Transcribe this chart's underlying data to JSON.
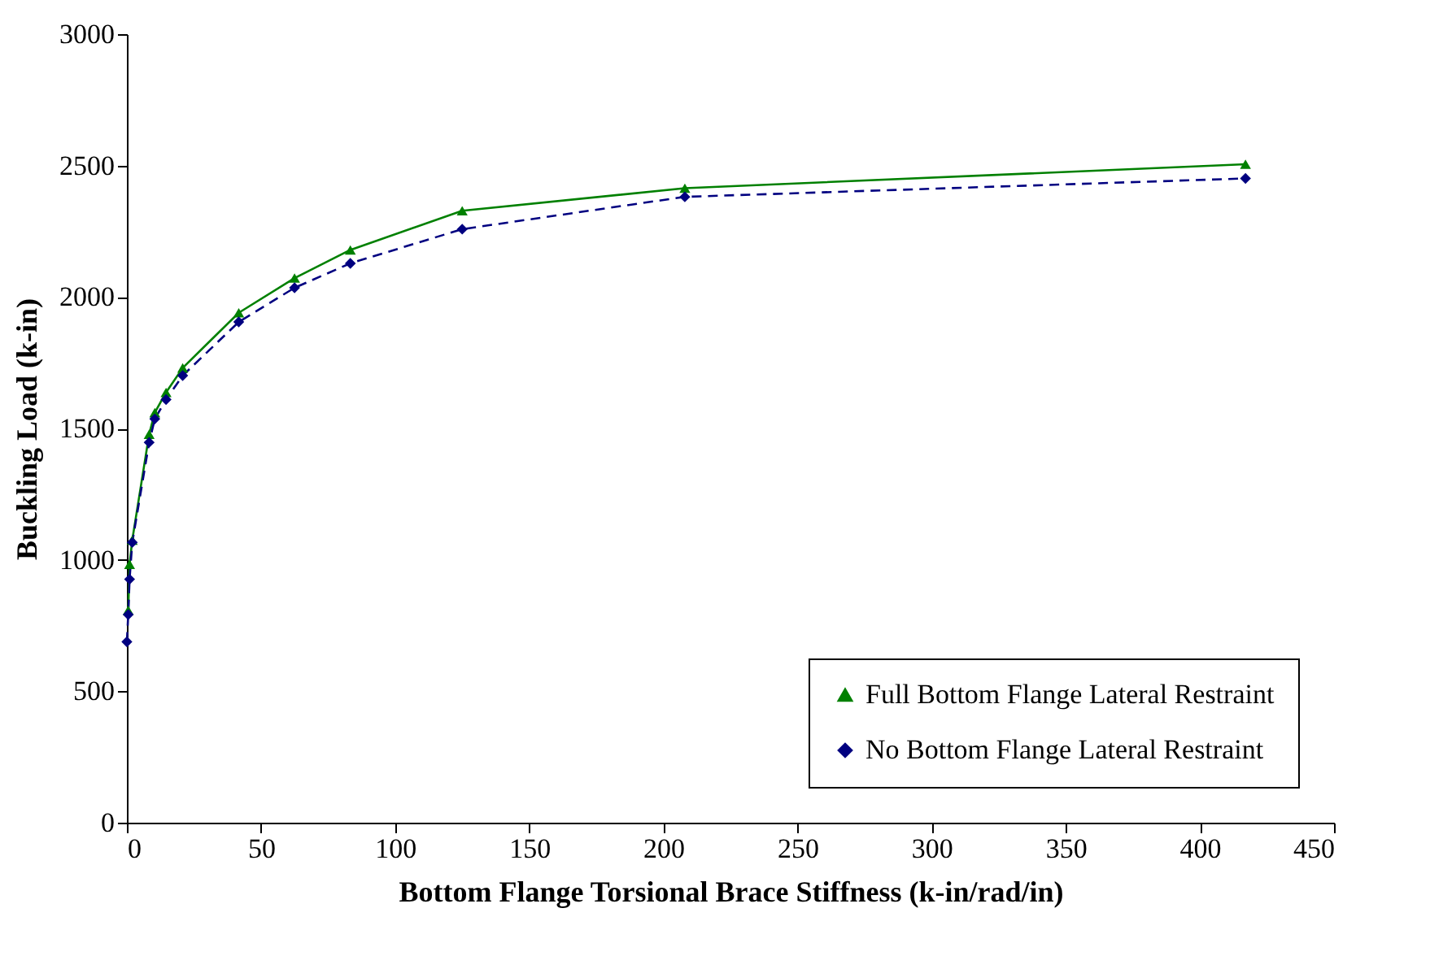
{
  "chart_data": {
    "type": "line",
    "xlabel": "Bottom Flange Torsional Brace Stiffness (k-in/rad/in)",
    "ylabel": "Buckling Load (k-in)",
    "x": [
      0,
      0.5,
      1,
      2,
      8.3,
      10.4,
      14.6,
      20.8,
      41.7,
      62.5,
      83.3,
      125,
      208,
      417
    ],
    "series": [
      {
        "name": "Full Bottom Flange Lateral Restraint",
        "color": "#008000",
        "marker": "triangle",
        "line_style": "solid",
        "values": [
          null,
          808,
          983,
          1075,
          1478,
          1560,
          1637,
          1730,
          1940,
          2072,
          2179,
          2328,
          2414,
          2505
        ]
      },
      {
        "name": "No Bottom Flange Lateral Restraint",
        "color": "#000080",
        "marker": "diamond",
        "line_style": "dashed",
        "values": [
          688,
          792,
          926,
          1066,
          1447,
          1536,
          1610,
          1701,
          1905,
          2035,
          2128,
          2258,
          2381,
          2451
        ]
      }
    ],
    "xlim": [
      0,
      450
    ],
    "xticks": [
      0,
      50,
      100,
      150,
      200,
      250,
      300,
      350,
      400,
      450
    ],
    "ylim": [
      0,
      3000
    ],
    "yticks": [
      0,
      500,
      1000,
      1500,
      2000,
      2500,
      3000
    ],
    "grid": false,
    "legend": "bottom right"
  }
}
